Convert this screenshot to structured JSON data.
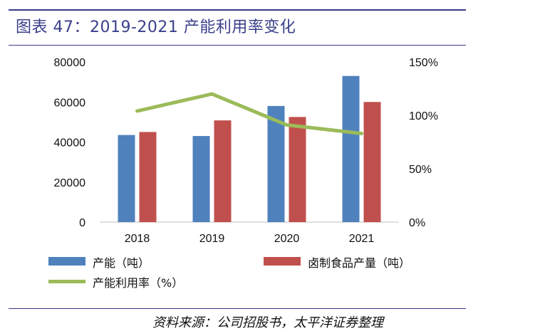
{
  "figure": {
    "title": "图表 47：2019-2021 产能利用率变化",
    "source": "资料来源：公司招股书，太平洋证券整理"
  },
  "colors": {
    "capacity": "#4f81bd",
    "output": "#c0504d",
    "utilization": "#9bbb59",
    "rule": "#3b3b8a"
  },
  "chart_data": {
    "type": "bar",
    "categories": [
      "2018",
      "2019",
      "2020",
      "2021"
    ],
    "series": [
      {
        "name": "产能（吨）",
        "kind": "bar",
        "axis": "left",
        "values": [
          43500,
          43000,
          58000,
          73000
        ]
      },
      {
        "name": "卤制食品产量（吨）",
        "kind": "bar",
        "axis": "left",
        "values": [
          45000,
          50800,
          52500,
          60000
        ]
      },
      {
        "name": "产能利用率（%）",
        "kind": "line",
        "axis": "right",
        "values": [
          1.04,
          1.2,
          0.91,
          0.83
        ]
      }
    ],
    "y_left": {
      "ticks": [
        "0",
        "20000",
        "40000",
        "60000",
        "80000"
      ],
      "range": [
        0,
        80000
      ]
    },
    "y_right": {
      "ticks": [
        "0%",
        "50%",
        "100%",
        "150%"
      ],
      "range": [
        0,
        1.5
      ]
    },
    "legend_position": "bottom",
    "grid": false
  }
}
